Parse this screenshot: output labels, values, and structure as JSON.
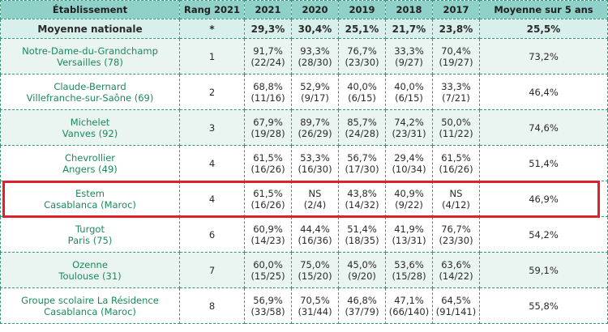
{
  "headers": [
    "Établissement",
    "Rang 2021",
    "2021",
    "2020",
    "2019",
    "2018",
    "2017",
    "Moyenne sur 5 ans"
  ],
  "national": {
    "label": "Moyenne nationale",
    "rank": "*",
    "values": [
      "29,3%",
      "30,4%",
      "25,1%",
      "21,7%",
      "23,8%"
    ],
    "average": "25,5%"
  },
  "rows": [
    {
      "name": "Notre-Dame-du-Grandchamp",
      "location": "Versailles (78)",
      "rank": "1",
      "values": [
        [
          "91,7%",
          "(22/24)"
        ],
        [
          "93,3%",
          "(28/30)"
        ],
        [
          "76,7%",
          "(23/30)"
        ],
        [
          "33,3%",
          "(9/27)"
        ],
        [
          "70,4%",
          "(19/27)"
        ]
      ],
      "average": "73,2%"
    },
    {
      "name": "Claude-Bernard",
      "location": "Villefranche-sur-Saône (69)",
      "rank": "2",
      "values": [
        [
          "68,8%",
          "(11/16)"
        ],
        [
          "52,9%",
          "(9/17)"
        ],
        [
          "40,0%",
          "(6/15)"
        ],
        [
          "40,0%",
          "(6/15)"
        ],
        [
          "33,3%",
          "(7/21)"
        ]
      ],
      "average": "46,4%"
    },
    {
      "name": "Michelet",
      "location": "Vanves (92)",
      "rank": "3",
      "values": [
        [
          "67,9%",
          "(19/28)"
        ],
        [
          "89,7%",
          "(26/29)"
        ],
        [
          "85,7%",
          "(24/28)"
        ],
        [
          "74,2%",
          "(23/31)"
        ],
        [
          "50,0%",
          "(11/22)"
        ]
      ],
      "average": "74,6%"
    },
    {
      "name": "Chevrollier",
      "location": "Angers (49)",
      "rank": "4",
      "values": [
        [
          "61,5%",
          "(16/26)"
        ],
        [
          "53,3%",
          "(16/30)"
        ],
        [
          "56,7%",
          "(17/30)"
        ],
        [
          "29,4%",
          "(10/34)"
        ],
        [
          "61,5%",
          "(16/26)"
        ]
      ],
      "average": "51,4%"
    },
    {
      "name": "Estem",
      "location": "Casablanca (Maroc)",
      "rank": "4",
      "values": [
        [
          "61,5%",
          "(16/26)"
        ],
        [
          "NS",
          "(2/4)"
        ],
        [
          "43,8%",
          "(14/32)"
        ],
        [
          "40,9%",
          "(9/22)"
        ],
        [
          "NS",
          "(4/12)"
        ]
      ],
      "average": "46,9%",
      "highlight": true
    },
    {
      "name": "Turgot",
      "location": "Paris (75)",
      "rank": "6",
      "values": [
        [
          "60,9%",
          "(14/23)"
        ],
        [
          "44,4%",
          "(16/36)"
        ],
        [
          "51,4%",
          "(18/35)"
        ],
        [
          "41,9%",
          "(13/31)"
        ],
        [
          "76,7%",
          "(23/30)"
        ]
      ],
      "average": "54,2%"
    },
    {
      "name": "Ozenne",
      "location": "Toulouse (31)",
      "rank": "7",
      "values": [
        [
          "60,0%",
          "(15/25)"
        ],
        [
          "75,0%",
          "(15/20)"
        ],
        [
          "45,0%",
          "(9/20)"
        ],
        [
          "53,6%",
          "(15/28)"
        ],
        [
          "63,6%",
          "(14/22)"
        ]
      ],
      "average": "59,1%"
    },
    {
      "name": "Groupe scolaire La Résidence",
      "location": "Casablanca (Maroc)",
      "rank": "8",
      "values": [
        [
          "56,9%",
          "(33/58)"
        ],
        [
          "70,5%",
          "(31/44)"
        ],
        [
          "46,8%",
          "(37/79)"
        ],
        [
          "47,1%",
          "(66/140)"
        ],
        [
          "64,5%",
          "(91/141)"
        ]
      ],
      "average": "55,8%"
    }
  ],
  "highlight_color": "#e0202a",
  "header_color": "#8fd1c9",
  "name_color": "#1b8a5a"
}
